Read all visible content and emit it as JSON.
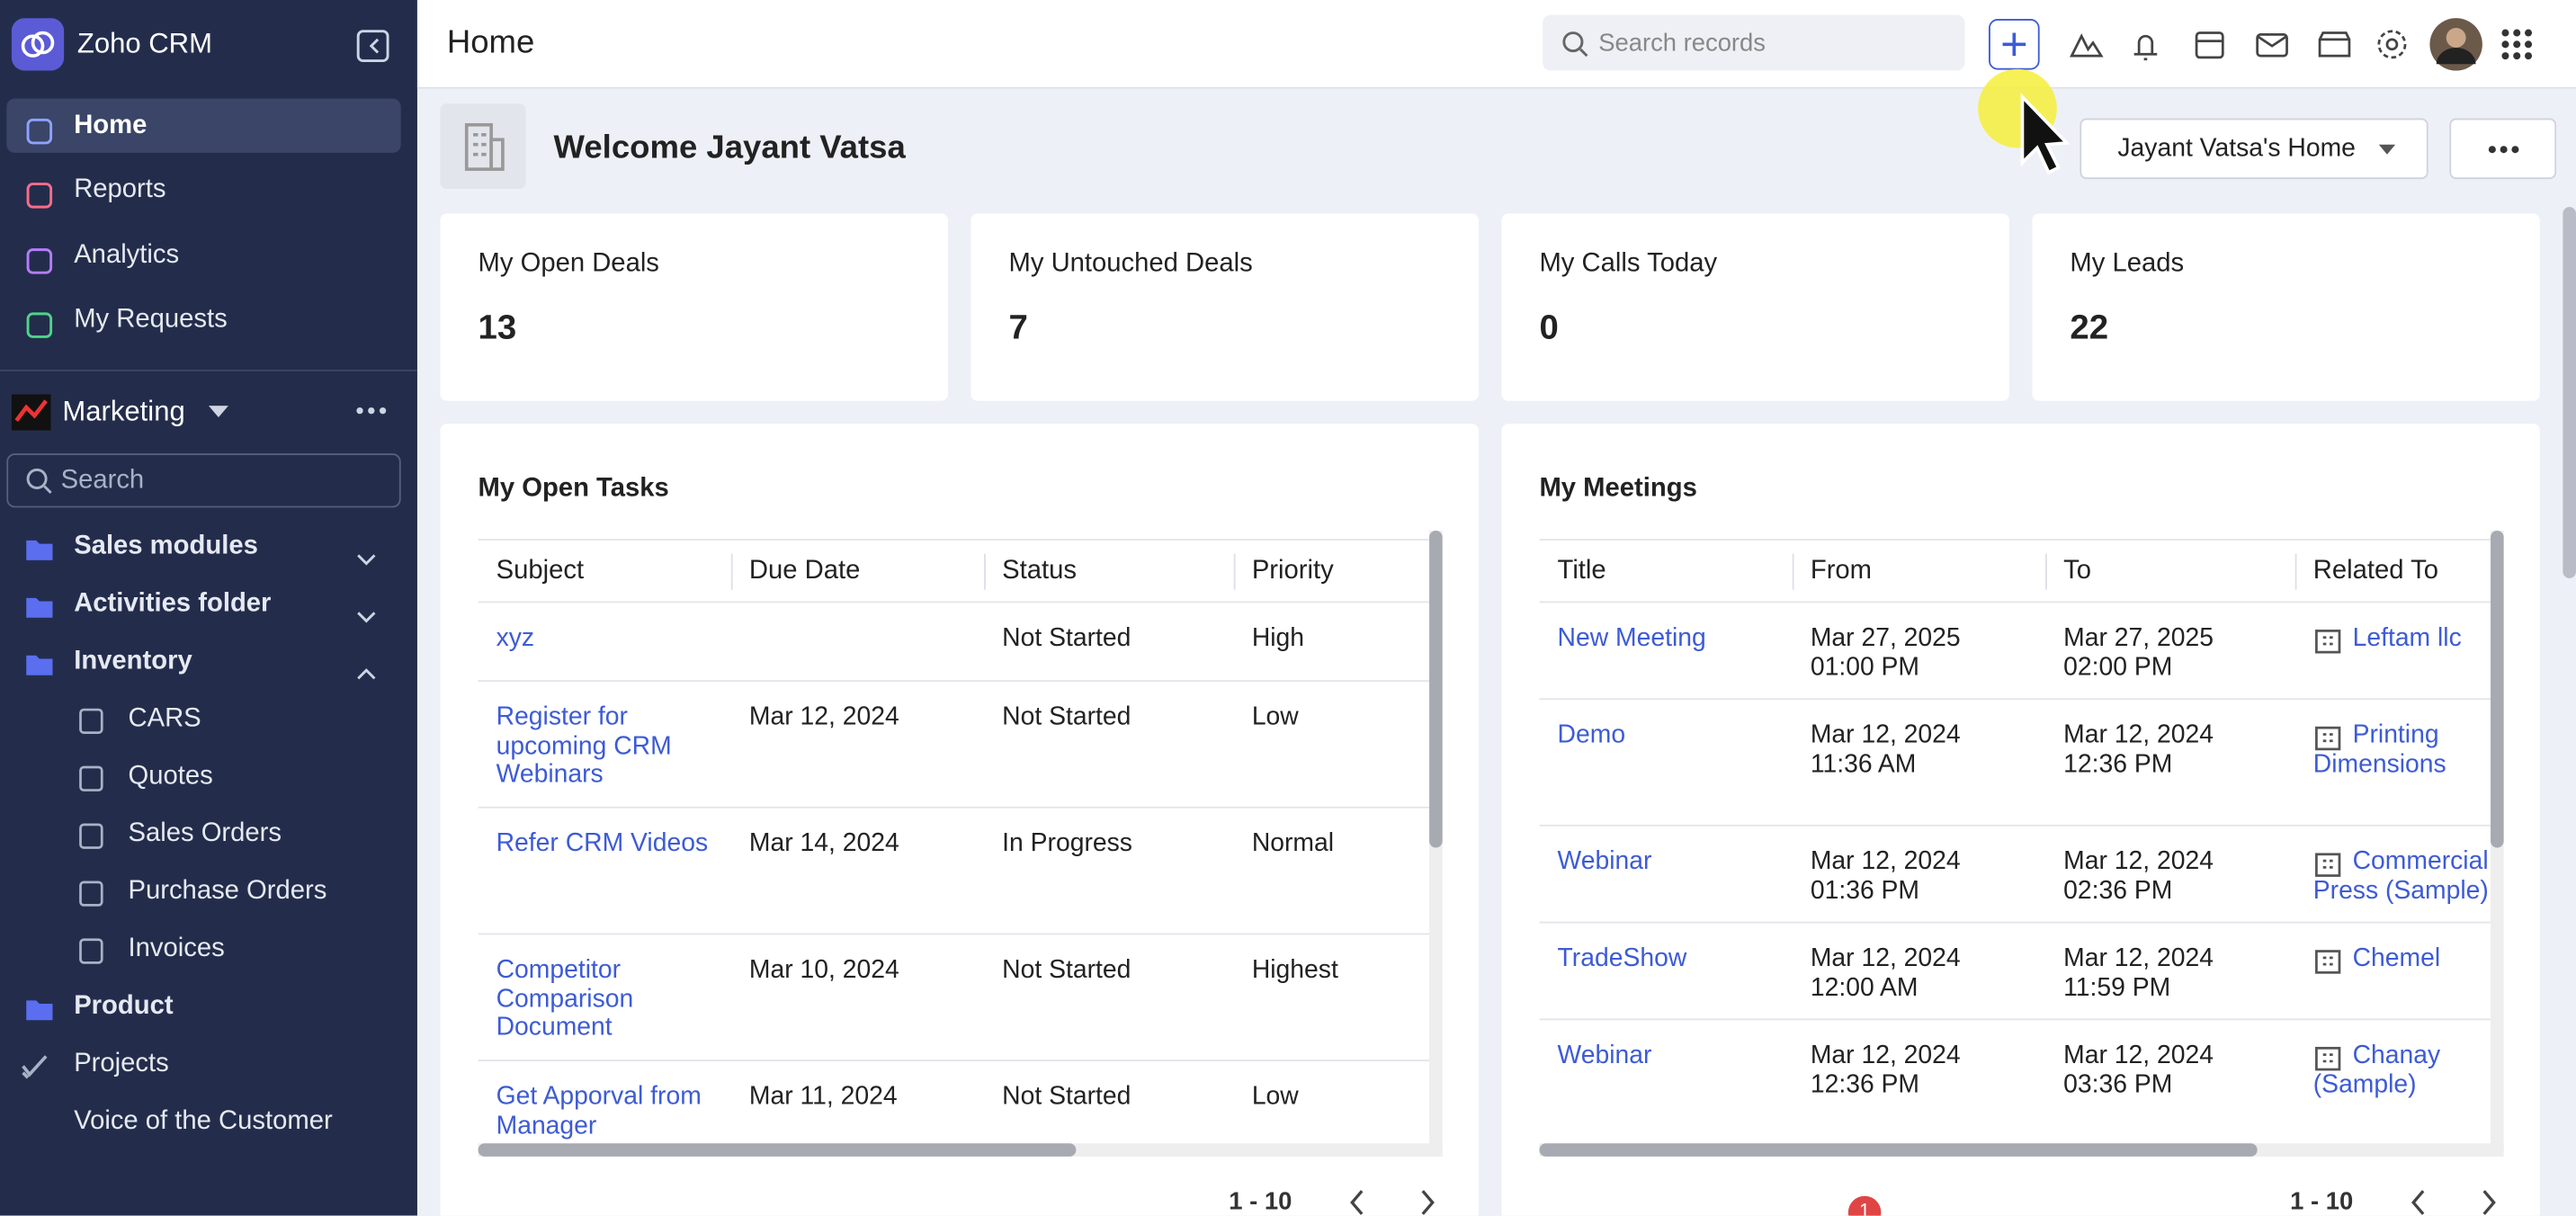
{
  "app": {
    "name": "Zoho CRM"
  },
  "sidebar": {
    "nav": [
      "Home",
      "Reports",
      "Analytics",
      "My Requests"
    ],
    "workspace": "Marketing",
    "search_placeholder": "Search",
    "folders": [
      {
        "label": "Sales modules",
        "state": "collapsed"
      },
      {
        "label": "Activities folder",
        "state": "collapsed"
      },
      {
        "label": "Inventory",
        "state": "expanded",
        "children": [
          "CARS",
          "Quotes",
          "Sales Orders",
          "Purchase Orders",
          "Invoices"
        ]
      },
      {
        "label": "Product"
      },
      {
        "label": "Projects"
      },
      {
        "label": "Voice of the Customer"
      }
    ]
  },
  "header": {
    "title": "Home",
    "search_placeholder": "Search records"
  },
  "welcome": {
    "text": "Welcome Jayant Vatsa",
    "home_selector": "Jayant Vatsa's Home"
  },
  "stats": [
    {
      "label": "My Open Deals",
      "value": 13
    },
    {
      "label": "My Untouched Deals",
      "value": 7
    },
    {
      "label": "My Calls Today",
      "value": 0
    },
    {
      "label": "My Leads",
      "value": 22
    }
  ],
  "tasks": {
    "title": "My Open Tasks",
    "columns": [
      "Subject",
      "Due Date",
      "Status",
      "Priority"
    ],
    "rows": [
      [
        "xyz",
        null,
        "Not Started",
        "High"
      ],
      [
        "Register for upcoming CRM Webinars",
        "Mar 12, 2024",
        "Not Started",
        "Low"
      ],
      [
        "Refer CRM Videos",
        "Mar 14, 2024",
        "In Progress",
        "Normal"
      ],
      [
        "Competitor Comparison Document",
        "Mar 10, 2024",
        "Not Started",
        "Highest"
      ],
      [
        "Get Apporval from Manager",
        "Mar 11, 2024",
        "Not Started",
        "Low"
      ]
    ],
    "pagination": "1 - 10"
  },
  "meetings": {
    "title": "My Meetings",
    "columns": [
      "Title",
      "From",
      "To",
      "Related To"
    ],
    "rows": [
      [
        "New Meeting",
        [
          "Mar 27, 2025",
          "01:00 PM"
        ],
        [
          "Mar 27, 2025",
          "02:00 PM"
        ],
        "Leftam llc"
      ],
      [
        "Demo",
        [
          "Mar 12, 2024",
          "11:36 AM"
        ],
        [
          "Mar 12, 2024",
          "12:36 PM"
        ],
        "Printing Dimensions"
      ],
      [
        "Webinar",
        [
          "Mar 12, 2024",
          "01:36 PM"
        ],
        [
          "Mar 12, 2024",
          "02:36 PM"
        ],
        "Commercial Press (Sample)"
      ],
      [
        "TradeShow",
        [
          "Mar 12, 2024",
          "12:00 AM"
        ],
        [
          "Mar 12, 2024",
          "11:59 PM"
        ],
        "Chemel"
      ],
      [
        "Webinar",
        [
          "Mar 12, 2024",
          "12:36 PM"
        ],
        [
          "Mar 12, 2024",
          "03:36 PM"
        ],
        "Chanay (Sample)"
      ]
    ],
    "pagination": "1 - 10"
  },
  "notification_badge": "1"
}
